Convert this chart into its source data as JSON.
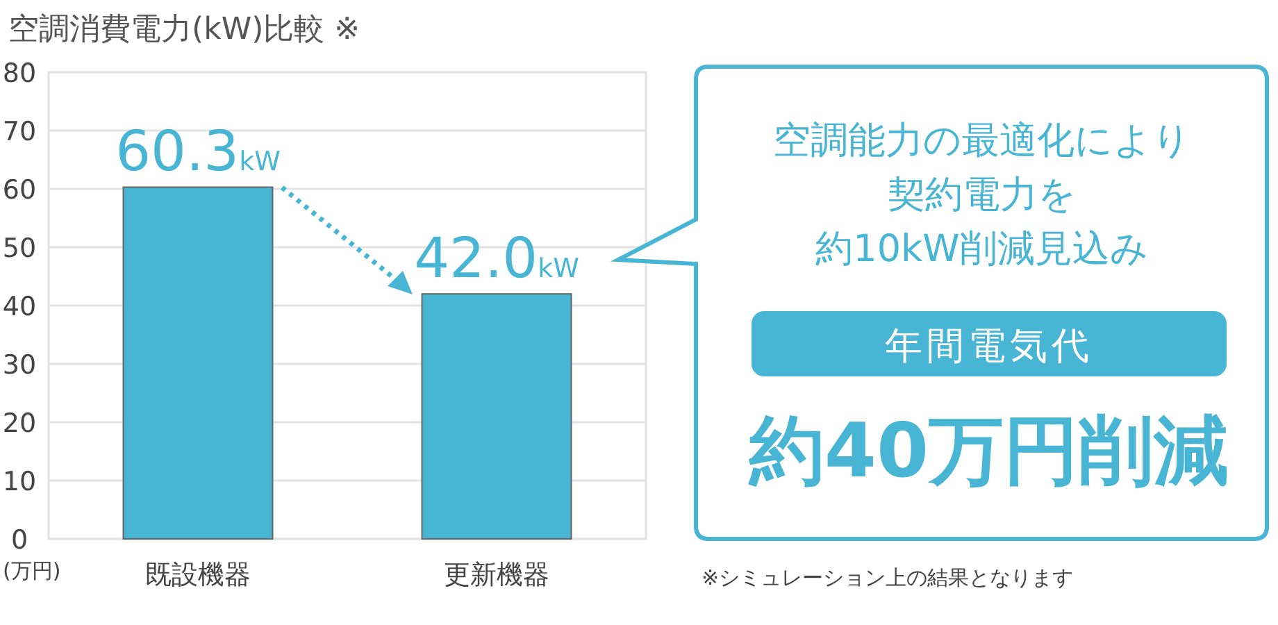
{
  "chart_data": {
    "type": "bar",
    "title": "空調消費電力(kW)比較 ※",
    "ylabel": "(万円)",
    "categories": [
      "既設機器",
      "更新機器"
    ],
    "values": [
      60.3,
      42.0
    ],
    "value_labels": [
      "60.3kW",
      "42.0kW"
    ],
    "color": "#47b5d3",
    "ylim": [
      0,
      80
    ],
    "yticks": [
      0,
      10,
      20,
      30,
      40,
      50,
      60,
      70,
      80
    ],
    "grid": "y",
    "annotations": [
      "空調能力の最適化により",
      "契約電力を",
      "約10kW削減見込み",
      "年間電気代",
      "約40万円削減",
      "※シミュレーション上の結果となります"
    ]
  }
}
